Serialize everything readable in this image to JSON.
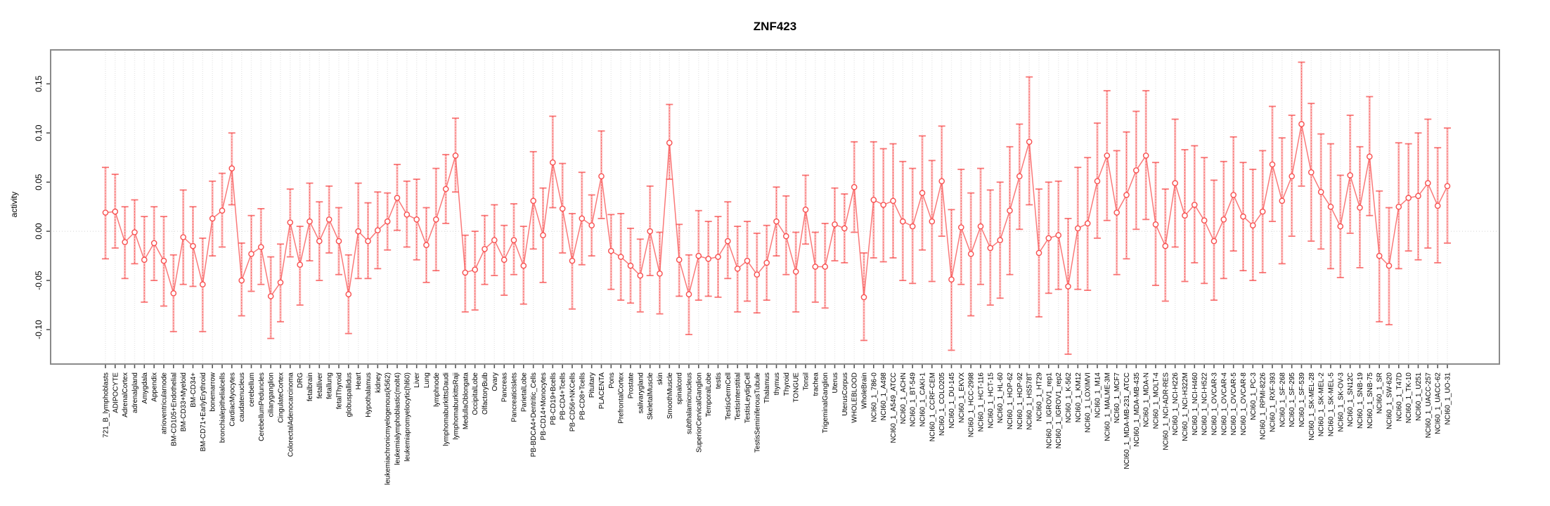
{
  "colors": {
    "point_stroke": "#f84f4f",
    "series_line": "#f96262",
    "errorbar_pale": "#fba8a8",
    "errorbar_core": "#f85555",
    "grid": "#e7e7e7",
    "zero_line": "#dcdcdc",
    "box": "#8a8a8a",
    "tick": "#555555",
    "text": "#000000",
    "background": "#ffffff"
  },
  "chart_data": {
    "type": "line",
    "title": "ZNF423",
    "xlabel": "",
    "ylabel": "activity",
    "legend": "none",
    "grid": "vertical-dashed",
    "marker": "open-circle",
    "error_bars": true,
    "ylim": [
      -0.135,
      0.1845
    ],
    "yticks": [
      {
        "value": 0.15,
        "label": "0.15"
      },
      {
        "value": 0.1,
        "label": "0.10"
      },
      {
        "value": 0.05,
        "label": "0.05"
      },
      {
        "value": 0.0,
        "label": "0.00"
      },
      {
        "value": -0.05,
        "label": "-0.05"
      },
      {
        "value": -0.1,
        "label": "-0.10"
      }
    ],
    "categories": [
      "721_B_lymphoblasts",
      "ADIPOCYTE",
      "AdrenalCortex",
      "adrenalgland",
      "Amygdala",
      "Appendix",
      "atrioventricularnode",
      "BM-CD105+Endothelial",
      "BM-CD33+Myeloid",
      "BM-CD34+",
      "BM-CD71+EarlyErythroid",
      "bonemarrow",
      "bronchialepithelialcells",
      "CardiacMyocytes",
      "caudatenucleus",
      "cerebellum",
      "CerebellumPeduncles",
      "ciliaryganglion",
      "CingulateCortex",
      "ColorectalAdenocarcinoma",
      "DRG",
      "fetalbrain",
      "fetalliver",
      "fetallung",
      "fetalThyroid",
      "globuspallidus",
      "Heart",
      "Hypothalamus",
      "kidney",
      "leukemiachronicmyelogenous(k562)",
      "leukemialymphoblastic(molt4)",
      "leukemiapromyelocytic(hl60)",
      "Liver",
      "Lung",
      "lymphnode",
      "lymphomaburkittsDaudi",
      "lymphomaburkittsRaji",
      "MedullaOblongata",
      "OccipitalLobe",
      "OlfactoryBulb",
      "Ovary",
      "Pancreas",
      "PancreaticIslets",
      "ParietalLobe",
      "PB-BDCA4+Dentritic_Cells",
      "PB-CD14+Monocytes",
      "PB-CD19+Bcells",
      "PB-CD4+Tcells",
      "PB-CD56+NKCells",
      "PB-CD8+Tcells",
      "Pituitary",
      "PLACENTA",
      "Pons",
      "PrefrontalCortex",
      "Prostate",
      "salivarygland",
      "SkeletalMuscle",
      "skin",
      "SmoothMuscle",
      "spinalcord",
      "subthalamicnucleus",
      "SuperiorCervicalGanglion",
      "TemporalLobe",
      "testis",
      "TestisGermCell",
      "TestisInterstitial",
      "TestisLeydigCell",
      "TestisSeminiferousTubule",
      "Thalamus",
      "thymus",
      "Thyroid",
      "TONGUE",
      "Tonsil",
      "trachea",
      "TrigeminalGanglion",
      "Uterus",
      "UterusCorpus",
      "WHOLEBLOOD",
      "WholeBrain",
      "NCI60_1_786-0",
      "NCI60_1_A498",
      "NCI60_1_A549_ATCC",
      "NCI60_1_ACHN",
      "NCI60_1_BT-549",
      "NCI60_1_CAKI-1",
      "NCI60_1_CCRF-CEM",
      "NCI60_1_COLO205",
      "NCI60_1_DU-145",
      "NCI60_1_EKVX",
      "NCI60_1_HCC-2998",
      "NCI60_1_HCT-116",
      "NCI60_1_HCT-15",
      "NCI60_1_HL-60",
      "NCI60_1_HOP-62",
      "NCI60_1_HOP-92",
      "NCI60_1_HS578T",
      "NCI60_1_HT29",
      "NCI60_1_IGROV1_rep1",
      "NCI60_1_IGROV1_rep2",
      "NCI60_1_K-562",
      "NCI60_1_KM12",
      "NCI60_1_LOXIMVI",
      "NCI60_1_M14",
      "NCI60_1_MALME-3M",
      "NCI60_1_MCF7",
      "NCI60_1_MDA-MB-231_ATCC",
      "NCI60_1_MDA-MB-435",
      "NCI60_1_MDA-N",
      "NCI60_1_MOLT-4",
      "NCI60_1_NCI-ADR-RES",
      "NCI60_1_NCI-H226",
      "NCI60_1_NCI-H322M",
      "NCI60_1_NCI-H460",
      "NCI60_1_NCI-H522",
      "NCI60_1_OVCAR-3",
      "NCI60_1_OVCAR-4",
      "NCI60_1_OVCAR-5",
      "NCI60_1_OVCAR-8",
      "NCI60_1_PC-3",
      "NCI60_1_RPMI-8226",
      "NCI60_1_RXF-393",
      "NCI60_1_SF-268",
      "NCI60_1_SF-295",
      "NCI60_1_SF-539",
      "NCI60_1_SK-MEL-28",
      "NCI60_1_SK-MEL-2",
      "NCI60_1_SK-MEL-5",
      "NCI60_1_SK-OV-3",
      "NCI60_1_SN12C",
      "NCI60_1_SNB-19",
      "NCI60_1_SNB-75",
      "NCI60_1_SR",
      "NCI60_1_SW-620",
      "NCI60_1_T47D",
      "NCI60_1_TK-10",
      "NCI60_1_U251",
      "NCI60_1_UACC-257",
      "NCI60_1_UACC-62",
      "NCI60_1_UO-31"
    ],
    "series": [
      {
        "name": "activity",
        "values": [
          0.019,
          0.02,
          -0.011,
          -0.001,
          -0.029,
          -0.012,
          -0.03,
          -0.063,
          -0.006,
          -0.015,
          -0.054,
          0.013,
          0.021,
          0.064,
          -0.05,
          -0.023,
          -0.016,
          -0.066,
          -0.052,
          0.009,
          -0.034,
          0.01,
          -0.01,
          0.012,
          -0.01,
          -0.064,
          0.0,
          -0.01,
          0.001,
          0.01,
          0.034,
          0.017,
          0.012,
          -0.014,
          0.012,
          0.043,
          0.077,
          -0.042,
          -0.039,
          -0.018,
          -0.009,
          -0.029,
          -0.009,
          -0.035,
          0.031,
          -0.004,
          0.07,
          0.023,
          -0.03,
          0.013,
          0.006,
          0.056,
          -0.02,
          -0.026,
          -0.035,
          -0.045,
          0.0,
          -0.043,
          0.09,
          -0.029,
          -0.064,
          -0.025,
          -0.028,
          -0.026,
          -0.01,
          -0.038,
          -0.03,
          -0.044,
          -0.032,
          0.01,
          -0.005,
          -0.041,
          0.022,
          -0.036,
          -0.036,
          0.007,
          0.003,
          0.045,
          -0.067,
          0.032,
          0.027,
          0.031,
          0.01,
          0.005,
          0.039,
          0.01,
          0.051,
          -0.049,
          0.004,
          -0.023,
          0.005,
          -0.017,
          -0.009,
          0.021,
          0.056,
          0.091,
          -0.022,
          -0.007,
          -0.004,
          -0.056,
          0.003,
          0.008,
          0.051,
          0.077,
          0.019,
          0.037,
          0.062,
          0.077,
          0.007,
          -0.015,
          0.049,
          0.016,
          0.027,
          0.011,
          -0.01,
          0.012,
          0.037,
          0.015,
          0.006,
          0.02,
          0.068,
          0.031,
          0.056,
          0.109,
          0.06,
          0.04,
          0.025,
          0.005,
          0.057,
          0.024,
          0.076,
          -0.025,
          -0.035,
          0.025,
          0.034,
          0.036,
          0.049,
          0.026,
          0.046
        ],
        "error_low": [
          -0.028,
          -0.017,
          -0.048,
          -0.033,
          -0.072,
          -0.05,
          -0.076,
          -0.102,
          -0.054,
          -0.056,
          -0.102,
          -0.025,
          -0.016,
          0.027,
          -0.086,
          -0.061,
          -0.054,
          -0.109,
          -0.092,
          -0.026,
          -0.075,
          -0.03,
          -0.05,
          -0.022,
          -0.044,
          -0.104,
          -0.048,
          -0.048,
          -0.038,
          -0.019,
          0.001,
          -0.016,
          -0.029,
          -0.052,
          -0.04,
          0.008,
          0.04,
          -0.082,
          -0.08,
          -0.054,
          -0.045,
          -0.065,
          -0.044,
          -0.074,
          -0.018,
          -0.052,
          0.024,
          -0.022,
          -0.079,
          -0.034,
          -0.025,
          0.013,
          -0.059,
          -0.07,
          -0.073,
          -0.082,
          -0.045,
          -0.084,
          0.053,
          -0.066,
          -0.105,
          -0.07,
          -0.066,
          -0.067,
          -0.048,
          -0.082,
          -0.071,
          -0.083,
          -0.07,
          -0.025,
          -0.044,
          -0.082,
          -0.013,
          -0.072,
          -0.078,
          -0.03,
          -0.032,
          -0.001,
          -0.111,
          -0.027,
          -0.031,
          -0.027,
          -0.05,
          -0.053,
          -0.019,
          -0.051,
          -0.005,
          -0.121,
          -0.054,
          -0.086,
          -0.054,
          -0.075,
          -0.068,
          -0.044,
          0.002,
          0.027,
          -0.087,
          -0.063,
          -0.059,
          -0.125,
          -0.059,
          -0.06,
          -0.007,
          0.011,
          -0.044,
          -0.028,
          0.002,
          0.012,
          -0.055,
          -0.071,
          -0.016,
          -0.051,
          -0.032,
          -0.053,
          -0.07,
          -0.048,
          -0.02,
          -0.04,
          -0.05,
          -0.042,
          0.01,
          -0.033,
          -0.005,
          0.046,
          -0.01,
          -0.018,
          -0.038,
          -0.047,
          -0.002,
          -0.037,
          0.016,
          -0.092,
          -0.095,
          -0.038,
          -0.02,
          -0.029,
          -0.017,
          -0.032,
          -0.012
        ],
        "error_high": [
          0.065,
          0.058,
          0.025,
          0.032,
          0.015,
          0.025,
          0.015,
          -0.024,
          0.042,
          0.025,
          -0.007,
          0.051,
          0.059,
          0.1,
          -0.012,
          0.016,
          0.023,
          -0.026,
          -0.013,
          0.043,
          0.005,
          0.049,
          0.03,
          0.046,
          0.024,
          -0.024,
          0.049,
          0.029,
          0.04,
          0.039,
          0.068,
          0.051,
          0.053,
          0.024,
          0.064,
          0.078,
          0.115,
          -0.004,
          0.0,
          0.016,
          0.027,
          0.006,
          0.028,
          0.005,
          0.081,
          0.044,
          0.117,
          0.069,
          0.018,
          0.06,
          0.037,
          0.102,
          0.017,
          0.018,
          0.003,
          -0.008,
          0.046,
          -0.001,
          0.129,
          0.007,
          -0.024,
          0.021,
          0.01,
          0.015,
          0.03,
          0.005,
          0.01,
          -0.002,
          0.006,
          0.045,
          0.036,
          -0.001,
          0.057,
          -0.001,
          0.008,
          0.044,
          0.038,
          0.091,
          -0.022,
          0.091,
          0.084,
          0.089,
          0.071,
          0.064,
          0.097,
          0.072,
          0.107,
          0.022,
          0.063,
          0.039,
          0.064,
          0.042,
          0.05,
          0.086,
          0.109,
          0.157,
          0.043,
          0.05,
          0.051,
          0.013,
          0.065,
          0.075,
          0.11,
          0.143,
          0.082,
          0.101,
          0.122,
          0.143,
          0.07,
          0.043,
          0.114,
          0.083,
          0.087,
          0.075,
          0.052,
          0.071,
          0.096,
          0.07,
          0.063,
          0.082,
          0.127,
          0.095,
          0.118,
          0.172,
          0.13,
          0.099,
          0.089,
          0.057,
          0.118,
          0.086,
          0.137,
          0.041,
          0.024,
          0.09,
          0.089,
          0.1,
          0.114,
          0.085,
          0.105
        ]
      }
    ]
  }
}
